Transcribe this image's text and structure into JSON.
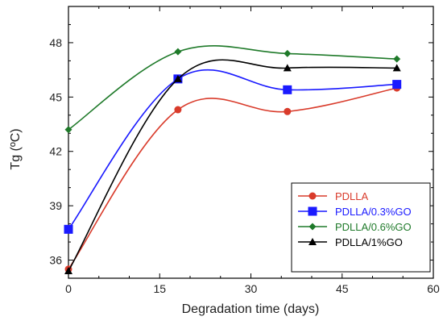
{
  "chart_data": {
    "type": "line",
    "title": "",
    "xlabel": "Degradation time (days)",
    "ylabel": "Tg (ºC)",
    "xlim": [
      0,
      60
    ],
    "ylim": [
      35,
      50
    ],
    "xticks": [
      0,
      15,
      30,
      45,
      60
    ],
    "yticks": [
      36,
      39,
      42,
      45,
      48
    ],
    "grid": false,
    "legend_position": "bottom-right",
    "series": [
      {
        "name": "PDLLA",
        "color": "#d93b2b",
        "marker": "circle",
        "x": [
          0,
          18,
          36,
          54
        ],
        "y": [
          35.5,
          44.3,
          44.2,
          45.5
        ]
      },
      {
        "name": "PDLLA/0.3%GO",
        "color": "#1a1aff",
        "marker": "square",
        "x": [
          0,
          18,
          36,
          54
        ],
        "y": [
          37.7,
          46.0,
          45.4,
          45.7
        ]
      },
      {
        "name": "PDLLA/0.6%GO",
        "color": "#1f7a2a",
        "marker": "diamond",
        "x": [
          0,
          18,
          36,
          54
        ],
        "y": [
          43.2,
          47.5,
          47.4,
          47.1
        ]
      },
      {
        "name": "PDLLA/1%GO",
        "color": "#000000",
        "marker": "triangle",
        "x": [
          0,
          18,
          36,
          54
        ],
        "y": [
          35.4,
          46.0,
          46.6,
          46.6
        ]
      }
    ]
  }
}
